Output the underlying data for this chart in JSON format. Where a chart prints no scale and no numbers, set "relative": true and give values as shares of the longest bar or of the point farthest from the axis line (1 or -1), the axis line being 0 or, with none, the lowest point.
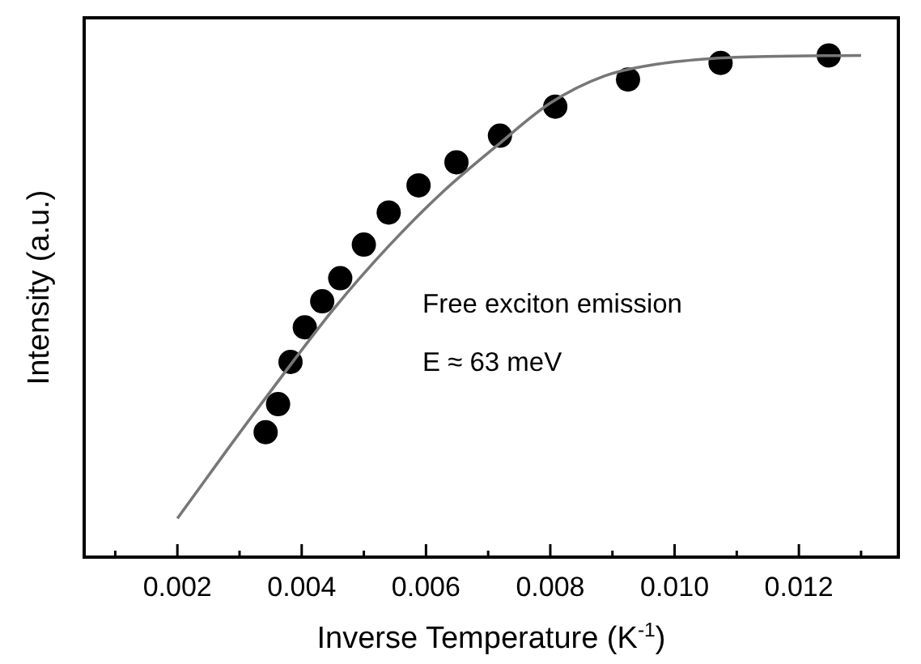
{
  "chart_data": {
    "type": "scatter",
    "relative": true,
    "xlabel": "Inverse Temperature (K$^{-1}$)",
    "ylabel": "Intensity (a.u.)",
    "xlim": [
      0.0005,
      0.0136
    ],
    "xticks": [
      {
        "value": 0.001,
        "label": null
      },
      0.002,
      {
        "value": 0.003,
        "label": null
      },
      0.004,
      {
        "value": 0.005,
        "label": null
      },
      0.006,
      {
        "value": 0.007,
        "label": null
      },
      0.008,
      {
        "value": 0.009,
        "label": null
      },
      {
        "value": 0.01,
        "label": "0.010"
      },
      {
        "value": 0.011,
        "label": null
      },
      0.012,
      {
        "value": 0.013,
        "label": null
      }
    ],
    "tick_labels": "x",
    "grid": false,
    "marker": "circle",
    "annotations": [
      "Free exciton emission",
      "E ≈ 63 meV"
    ],
    "series": [
      {
        "type": "scatter",
        "color": "#000000",
        "x": [
          0.00342,
          0.00362,
          0.00382,
          0.00405,
          0.00433,
          0.00462,
          0.005,
          0.0054,
          0.00588,
          0.00649,
          0.00719,
          0.00808,
          0.00925,
          0.01074,
          0.01248
        ],
        "values": [
          0.249,
          0.305,
          0.389,
          0.458,
          0.51,
          0.556,
          0.623,
          0.687,
          0.741,
          0.787,
          0.84,
          0.898,
          0.952,
          0.985,
          1.0
        ]
      },
      {
        "type": "line",
        "color": "#777777",
        "line_style": "solid",
        "marker": "none",
        "x": [
          0.002,
          0.00279,
          0.00366,
          0.00453,
          0.0054,
          0.00627,
          0.00713,
          0.008,
          0.00887,
          0.00974,
          0.01061,
          0.01148,
          0.013
        ],
        "values": [
          0.077,
          0.212,
          0.357,
          0.497,
          0.62,
          0.728,
          0.819,
          0.905,
          0.959,
          0.983,
          0.994,
          0.998,
          1.0
        ]
      }
    ]
  }
}
